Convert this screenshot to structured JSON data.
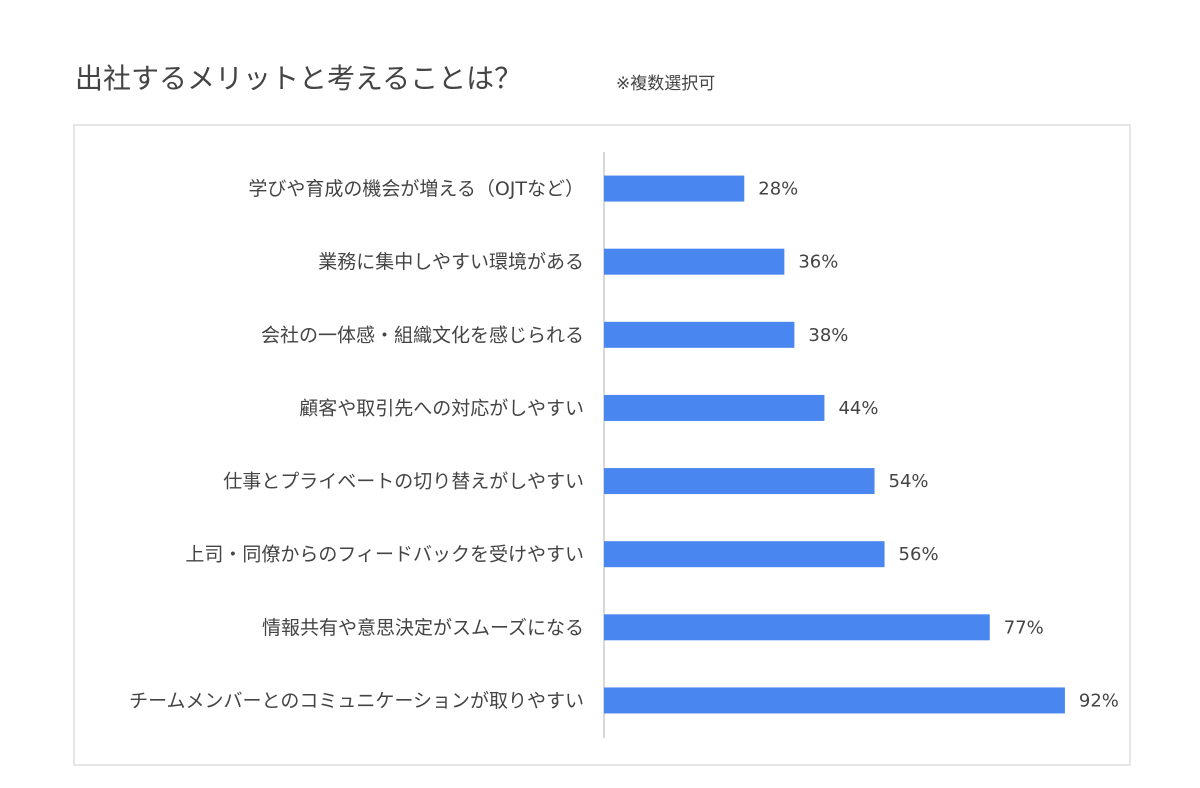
{
  "chart_data": {
    "type": "bar",
    "orientation": "horizontal",
    "title": "出社するメリットと考えることは？",
    "subtitle": "※複数選択可",
    "categories": [
      "学びや育成の機会が増える（OJTなど）",
      "業務に集中しやすい環境がある",
      "会社の一体感・組織文化を感じられる",
      "顧客や取引先への対応がしやすい",
      "仕事とプライベートの切り替えがしやすい",
      "上司・同僚からのフィードバックを受けやすい",
      "情報共有や意思決定がスムーズになる",
      "チームメンバーとのコミュニケーションが取りやすい"
    ],
    "values": [
      28,
      36,
      38,
      44,
      54,
      56,
      77,
      92
    ],
    "value_labels": [
      "28%",
      "36%",
      "38%",
      "44%",
      "54%",
      "56%",
      "77%",
      "92%"
    ],
    "color": "#4a86ef",
    "xlim": [
      0,
      100
    ]
  }
}
